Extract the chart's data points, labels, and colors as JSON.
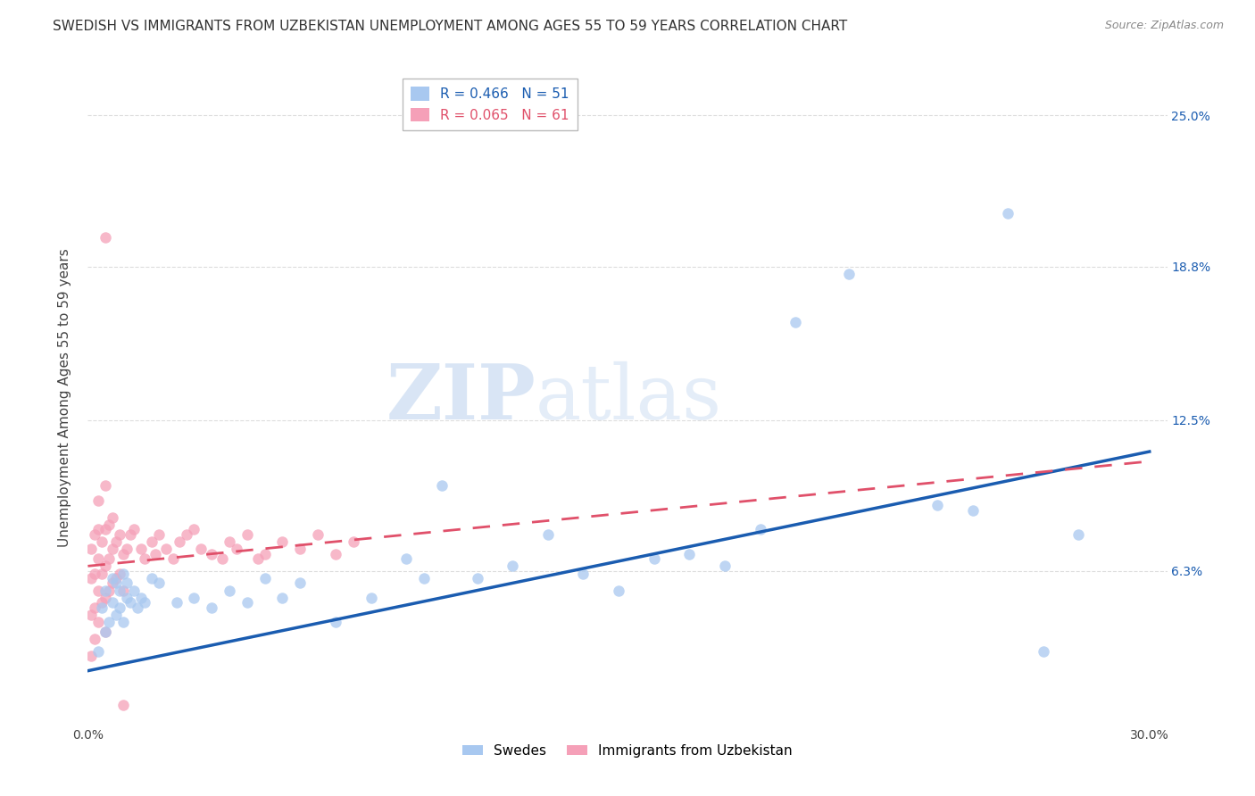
{
  "title": "SWEDISH VS IMMIGRANTS FROM UZBEKISTAN UNEMPLOYMENT AMONG AGES 55 TO 59 YEARS CORRELATION CHART",
  "source": "Source: ZipAtlas.com",
  "ylabel": "Unemployment Among Ages 55 to 59 years",
  "xlim": [
    0.0,
    0.305
  ],
  "ylim": [
    0.0,
    0.268
  ],
  "xtick_positions": [
    0.0,
    0.05,
    0.1,
    0.15,
    0.2,
    0.25,
    0.3
  ],
  "xticklabels": [
    "0.0%",
    "",
    "",
    "",
    "",
    "",
    "30.0%"
  ],
  "ytick_positions": [
    0.063,
    0.125,
    0.188,
    0.25
  ],
  "ytick_labels": [
    "6.3%",
    "12.5%",
    "18.8%",
    "25.0%"
  ],
  "swedes_color": "#A8C8F0",
  "uzbek_color": "#F5A0B8",
  "trend_swedes_color": "#1A5CB0",
  "trend_uzbek_color": "#E0506A",
  "label_swedes": "Swedes",
  "label_uzbek": "Immigrants from Uzbekistan",
  "watermark_zip": "ZIP",
  "watermark_atlas": "atlas",
  "background_color": "#FFFFFF",
  "grid_color": "#DDDDDD",
  "title_fontsize": 11,
  "axis_label_fontsize": 11,
  "tick_fontsize": 10,
  "marker_size": 9,
  "swedes_x": [
    0.003,
    0.004,
    0.005,
    0.005,
    0.006,
    0.007,
    0.007,
    0.008,
    0.008,
    0.009,
    0.009,
    0.01,
    0.01,
    0.011,
    0.011,
    0.012,
    0.013,
    0.014,
    0.015,
    0.016,
    0.018,
    0.02,
    0.025,
    0.03,
    0.035,
    0.04,
    0.045,
    0.05,
    0.055,
    0.06,
    0.07,
    0.08,
    0.09,
    0.095,
    0.1,
    0.11,
    0.12,
    0.13,
    0.14,
    0.15,
    0.16,
    0.17,
    0.18,
    0.19,
    0.2,
    0.215,
    0.24,
    0.25,
    0.26,
    0.27,
    0.28
  ],
  "swedes_y": [
    0.03,
    0.048,
    0.038,
    0.055,
    0.042,
    0.05,
    0.06,
    0.045,
    0.058,
    0.048,
    0.055,
    0.042,
    0.062,
    0.052,
    0.058,
    0.05,
    0.055,
    0.048,
    0.052,
    0.05,
    0.06,
    0.058,
    0.05,
    0.052,
    0.048,
    0.055,
    0.05,
    0.06,
    0.052,
    0.058,
    0.042,
    0.052,
    0.068,
    0.06,
    0.098,
    0.06,
    0.065,
    0.078,
    0.062,
    0.055,
    0.068,
    0.07,
    0.065,
    0.08,
    0.165,
    0.185,
    0.09,
    0.088,
    0.21,
    0.03,
    0.078
  ],
  "uzbek_x": [
    0.001,
    0.001,
    0.001,
    0.001,
    0.002,
    0.002,
    0.002,
    0.002,
    0.003,
    0.003,
    0.003,
    0.003,
    0.003,
    0.004,
    0.004,
    0.004,
    0.005,
    0.005,
    0.005,
    0.005,
    0.005,
    0.006,
    0.006,
    0.006,
    0.007,
    0.007,
    0.007,
    0.008,
    0.008,
    0.009,
    0.009,
    0.01,
    0.01,
    0.011,
    0.012,
    0.013,
    0.015,
    0.016,
    0.018,
    0.019,
    0.02,
    0.022,
    0.024,
    0.026,
    0.028,
    0.03,
    0.032,
    0.035,
    0.038,
    0.04,
    0.042,
    0.045,
    0.048,
    0.05,
    0.055,
    0.06,
    0.065,
    0.07,
    0.075,
    0.005,
    0.01
  ],
  "uzbek_y": [
    0.028,
    0.045,
    0.06,
    0.072,
    0.035,
    0.048,
    0.062,
    0.078,
    0.042,
    0.055,
    0.068,
    0.08,
    0.092,
    0.05,
    0.062,
    0.075,
    0.038,
    0.052,
    0.065,
    0.08,
    0.098,
    0.055,
    0.068,
    0.082,
    0.058,
    0.072,
    0.085,
    0.06,
    0.075,
    0.062,
    0.078,
    0.055,
    0.07,
    0.072,
    0.078,
    0.08,
    0.072,
    0.068,
    0.075,
    0.07,
    0.078,
    0.072,
    0.068,
    0.075,
    0.078,
    0.08,
    0.072,
    0.07,
    0.068,
    0.075,
    0.072,
    0.078,
    0.068,
    0.07,
    0.075,
    0.072,
    0.078,
    0.07,
    0.075,
    0.2,
    0.008
  ],
  "swedes_trend_x0": 0.0,
  "swedes_trend_y0": 0.022,
  "swedes_trend_x1": 0.3,
  "swedes_trend_y1": 0.112,
  "uzbek_trend_x0": 0.0,
  "uzbek_trend_y0": 0.065,
  "uzbek_trend_x1": 0.3,
  "uzbek_trend_y1": 0.108
}
